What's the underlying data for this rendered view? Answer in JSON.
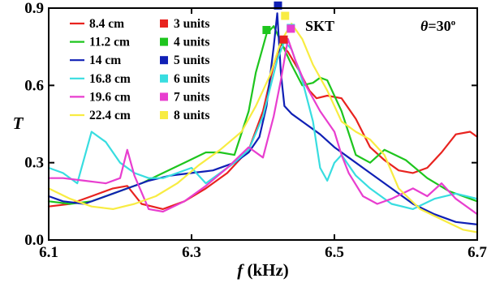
{
  "chart_data": {
    "type": "line",
    "xlabel_italic": "f",
    "xlabel_rest": " (kHz)",
    "ylabel": "T",
    "xlim": [
      6.1,
      6.7
    ],
    "ylim": [
      0.0,
      0.9
    ],
    "xticks": [
      {
        "value": 6.1,
        "label": "6.1"
      },
      {
        "value": 6.3,
        "label": "6.3"
      },
      {
        "value": 6.5,
        "label": "6.5"
      },
      {
        "value": 6.7,
        "label": "6.7"
      }
    ],
    "yticks": [
      {
        "value": 0.0,
        "label": "0.0"
      },
      {
        "value": 0.3,
        "label": "0.3"
      },
      {
        "value": 0.6,
        "label": "0.6"
      },
      {
        "value": 0.9,
        "label": "0.9"
      }
    ],
    "annotations": {
      "skt": "SKT",
      "theta_symbol": "θ",
      "theta_value": "=30",
      "theta_sup": "o"
    },
    "series": [
      {
        "name": "8.4 cm",
        "color": "#e8231f",
        "x": [
          6.1,
          6.13,
          6.16,
          6.19,
          6.21,
          6.23,
          6.26,
          6.29,
          6.32,
          6.35,
          6.38,
          6.4,
          6.415,
          6.425,
          6.435,
          6.45,
          6.465,
          6.475,
          6.49,
          6.51,
          6.53,
          6.55,
          6.57,
          6.59,
          6.61,
          6.63,
          6.65,
          6.67,
          6.69,
          6.7
        ],
        "y": [
          0.13,
          0.14,
          0.17,
          0.2,
          0.21,
          0.14,
          0.12,
          0.15,
          0.2,
          0.26,
          0.35,
          0.5,
          0.68,
          0.76,
          0.73,
          0.66,
          0.58,
          0.55,
          0.56,
          0.55,
          0.47,
          0.36,
          0.31,
          0.27,
          0.26,
          0.28,
          0.34,
          0.41,
          0.42,
          0.4
        ]
      },
      {
        "name": "11.2 cm",
        "color": "#1ec51e",
        "x": [
          6.1,
          6.13,
          6.16,
          6.19,
          6.21,
          6.23,
          6.26,
          6.29,
          6.32,
          6.34,
          6.36,
          6.38,
          6.39,
          6.405,
          6.415,
          6.425,
          6.44,
          6.455,
          6.47,
          6.48,
          6.49,
          6.51,
          6.53,
          6.55,
          6.57,
          6.6,
          6.63,
          6.66,
          6.7
        ],
        "y": [
          0.15,
          0.14,
          0.15,
          0.18,
          0.2,
          0.22,
          0.26,
          0.3,
          0.34,
          0.34,
          0.33,
          0.5,
          0.65,
          0.8,
          0.83,
          0.77,
          0.68,
          0.6,
          0.61,
          0.63,
          0.62,
          0.5,
          0.33,
          0.3,
          0.35,
          0.31,
          0.24,
          0.19,
          0.15
        ]
      },
      {
        "name": "14 cm",
        "color": "#1020b5",
        "x": [
          6.1,
          6.12,
          6.15,
          6.18,
          6.21,
          6.24,
          6.27,
          6.3,
          6.33,
          6.36,
          6.38,
          6.395,
          6.405,
          6.415,
          6.42,
          6.425,
          6.43,
          6.44,
          6.46,
          6.48,
          6.5,
          6.52,
          6.55,
          6.58,
          6.61,
          6.64,
          6.67,
          6.7
        ],
        "y": [
          0.17,
          0.15,
          0.14,
          0.17,
          0.2,
          0.23,
          0.25,
          0.26,
          0.27,
          0.3,
          0.34,
          0.4,
          0.52,
          0.75,
          0.88,
          0.65,
          0.52,
          0.49,
          0.45,
          0.41,
          0.36,
          0.32,
          0.26,
          0.2,
          0.14,
          0.1,
          0.07,
          0.06
        ]
      },
      {
        "name": "16.8 cm",
        "color": "#38dde0",
        "x": [
          6.1,
          6.12,
          6.14,
          6.16,
          6.18,
          6.2,
          6.22,
          6.24,
          6.26,
          6.28,
          6.3,
          6.32,
          6.34,
          6.36,
          6.38,
          6.4,
          6.42,
          6.43,
          6.44,
          6.455,
          6.47,
          6.48,
          6.49,
          6.5,
          6.51,
          6.53,
          6.55,
          6.58,
          6.61,
          6.64,
          6.67,
          6.7
        ],
        "y": [
          0.28,
          0.26,
          0.22,
          0.42,
          0.38,
          0.3,
          0.26,
          0.24,
          0.24,
          0.26,
          0.28,
          0.22,
          0.26,
          0.3,
          0.35,
          0.48,
          0.7,
          0.77,
          0.74,
          0.62,
          0.46,
          0.28,
          0.23,
          0.3,
          0.33,
          0.25,
          0.2,
          0.14,
          0.12,
          0.16,
          0.18,
          0.16
        ]
      },
      {
        "name": "19.6 cm",
        "color": "#e83ecf",
        "x": [
          6.1,
          6.12,
          6.15,
          6.18,
          6.2,
          6.21,
          6.22,
          6.24,
          6.26,
          6.29,
          6.32,
          6.35,
          6.38,
          6.4,
          6.415,
          6.425,
          6.435,
          6.445,
          6.46,
          6.48,
          6.5,
          6.51,
          6.52,
          6.54,
          6.56,
          6.58,
          6.61,
          6.63,
          6.65,
          6.67,
          6.7
        ],
        "y": [
          0.24,
          0.24,
          0.23,
          0.22,
          0.24,
          0.35,
          0.25,
          0.12,
          0.11,
          0.15,
          0.21,
          0.28,
          0.36,
          0.32,
          0.48,
          0.62,
          0.78,
          0.7,
          0.6,
          0.5,
          0.42,
          0.33,
          0.26,
          0.17,
          0.14,
          0.16,
          0.2,
          0.17,
          0.22,
          0.16,
          0.1
        ]
      },
      {
        "name": "22.4 cm",
        "color": "#f8ec42",
        "x": [
          6.1,
          6.13,
          6.16,
          6.19,
          6.22,
          6.25,
          6.28,
          6.31,
          6.34,
          6.37,
          6.39,
          6.41,
          6.425,
          6.44,
          6.455,
          6.47,
          6.49,
          6.51,
          6.53,
          6.55,
          6.57,
          6.59,
          6.62,
          6.65,
          6.68,
          6.7
        ],
        "y": [
          0.2,
          0.16,
          0.13,
          0.12,
          0.14,
          0.17,
          0.22,
          0.29,
          0.35,
          0.42,
          0.52,
          0.64,
          0.77,
          0.84,
          0.78,
          0.68,
          0.58,
          0.46,
          0.42,
          0.39,
          0.33,
          0.2,
          0.12,
          0.08,
          0.04,
          0.03
        ]
      }
    ],
    "markers": [
      {
        "name": "3 units",
        "color": "#e8231f",
        "x": 6.429,
        "y": 0.778
      },
      {
        "name": "4 units",
        "color": "#1ec51e",
        "x": 6.405,
        "y": 0.815
      },
      {
        "name": "5 units",
        "color": "#1020b5",
        "x": 6.421,
        "y": 0.91
      },
      {
        "name": "6 units",
        "color": "#38dde0",
        "x": 6.439,
        "y": 0.823
      },
      {
        "name": "7 units",
        "color": "#e83ecf",
        "x": 6.439,
        "y": 0.82
      },
      {
        "name": "8 units",
        "color": "#f8ec42",
        "x": 6.431,
        "y": 0.87
      }
    ]
  }
}
